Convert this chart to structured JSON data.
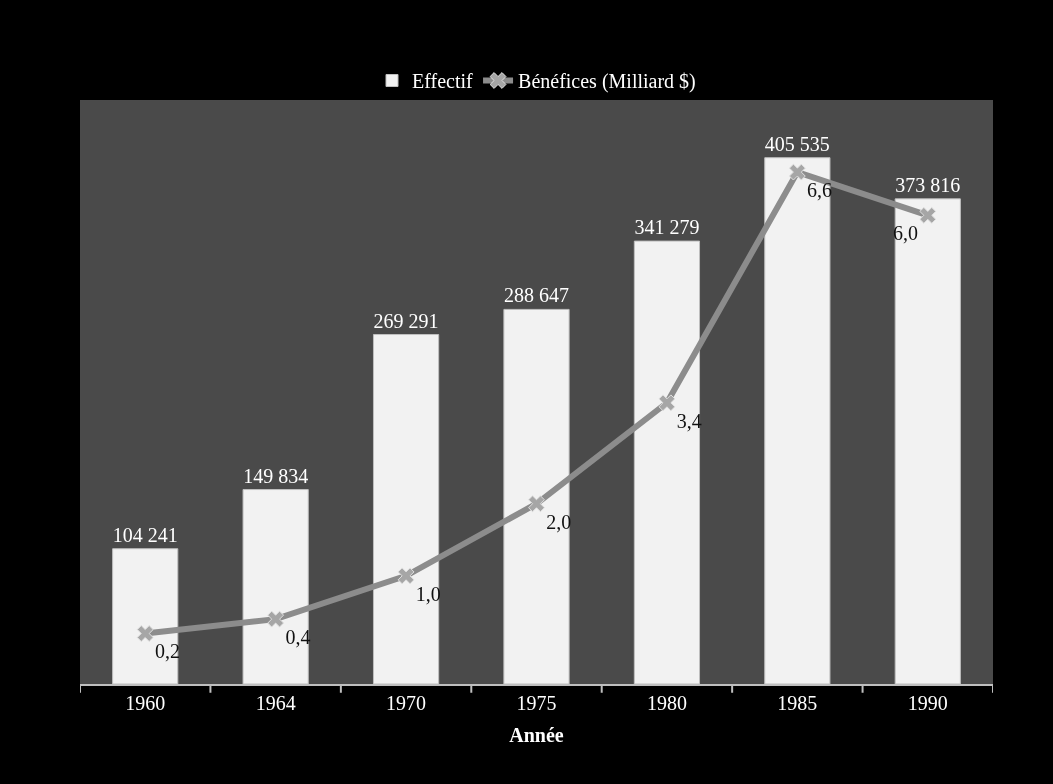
{
  "chart_data": {
    "type": "bar",
    "xlabel": "Année",
    "categories": [
      "1960",
      "1964",
      "1970",
      "1975",
      "1980",
      "1985",
      "1990"
    ],
    "series": [
      {
        "name": "Effectif",
        "color": "#f2f2f2",
        "values": [
          104241,
          149834,
          269291,
          288647,
          341279,
          405535,
          373816
        ],
        "value_labels": [
          "104 241",
          "149 834",
          "269 291",
          "288 647",
          "341 279",
          "405 535",
          "373 816"
        ]
      },
      {
        "name": "Bénéfices (Milliard $)",
        "type": "line",
        "axis": "y2",
        "color": "#8c8c8c",
        "marker": "cross",
        "values": [
          0.2,
          0.4,
          1.0,
          2.0,
          3.4,
          6.6,
          6.0
        ],
        "value_labels": [
          "0,2",
          "0,4",
          "1,0",
          "2,0",
          "3,4",
          "6,6",
          "6,0"
        ]
      }
    ],
    "ylim": [
      0,
      450000
    ],
    "y2lim": [
      -0.5,
      7.6
    ],
    "tick_labels": "x",
    "grid": false,
    "legend": "top"
  }
}
